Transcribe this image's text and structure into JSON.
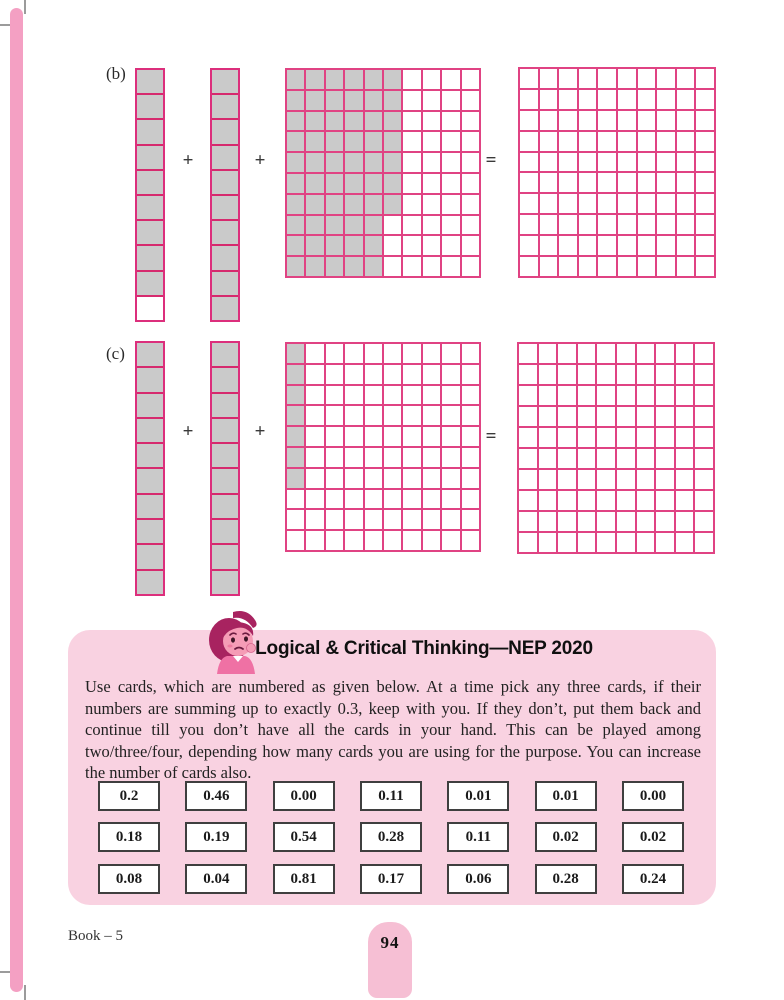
{
  "symbols": {
    "plus": "+",
    "equals": "="
  },
  "colors": {
    "grid_line": "#e04383",
    "strip_line": "#d62a6e",
    "shaded_cell": "#cacaca",
    "box_bg": "#f9d2e1",
    "tab_bg": "#f6bfd4",
    "edge_bar": "#f4a0c3"
  },
  "exercises": [
    {
      "label": "(b)",
      "strips": [
        {
          "cells": 10,
          "shaded": 9
        },
        {
          "cells": 10,
          "shaded": 10
        }
      ],
      "grid": {
        "rows": 10,
        "cols": 10,
        "shaded_per_row": [
          6,
          6,
          6,
          6,
          6,
          6,
          6,
          5,
          5,
          5
        ]
      },
      "result_grid": {
        "rows": 10,
        "cols": 10,
        "shaded_per_row": [
          0,
          0,
          0,
          0,
          0,
          0,
          0,
          0,
          0,
          0
        ]
      }
    },
    {
      "label": "(c)",
      "strips": [
        {
          "cells": 10,
          "shaded": 10
        },
        {
          "cells": 10,
          "shaded": 10
        }
      ],
      "grid": {
        "rows": 10,
        "cols": 10,
        "shaded_per_row": [
          1,
          1,
          1,
          1,
          1,
          1,
          1,
          0,
          0,
          0
        ]
      },
      "result_grid": {
        "rows": 10,
        "cols": 10,
        "shaded_per_row": [
          0,
          0,
          0,
          0,
          0,
          0,
          0,
          0,
          0,
          0
        ]
      }
    }
  ],
  "thinking_box": {
    "title": "Logical & Critical Thinking—NEP 2020",
    "mascot": "worried-girl-icon",
    "paragraph": "Use cards, which are numbered as given below. At a time pick any three cards, if their numbers are summing up to exactly 0.3, keep with you. If they don’t, put them back and continue till you don’t have all the cards in your hand. This can be played among two/three/four, depending how many cards you are using for the purpose. You can increase the number of cards also.",
    "cards": [
      [
        "0.2",
        "0.46",
        "0.00",
        "0.11",
        "0.01",
        "0.01",
        "0.00"
      ],
      [
        "0.18",
        "0.19",
        "0.54",
        "0.28",
        "0.11",
        "0.02",
        "0.02"
      ],
      [
        "0.08",
        "0.04",
        "0.81",
        "0.17",
        "0.06",
        "0.28",
        "0.24"
      ]
    ]
  },
  "footer": {
    "left": "Book – 5",
    "page_number": "94"
  }
}
